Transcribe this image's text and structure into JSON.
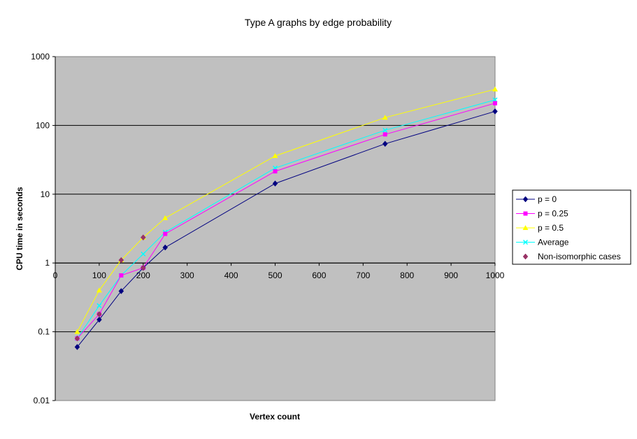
{
  "chart_data": {
    "type": "line",
    "title": "Type A graphs by edge probability",
    "xlabel": "Vertex count",
    "ylabel": "CPU time in seconds",
    "xlim": [
      0,
      1000
    ],
    "ylim": [
      0.01,
      1000
    ],
    "y_scale": "log",
    "x_ticks": [
      "0",
      "100",
      "200",
      "300",
      "400",
      "500",
      "600",
      "700",
      "800",
      "900",
      "1000"
    ],
    "y_ticks": [
      "0.01",
      "0.1",
      "1",
      "10",
      "100",
      "1000"
    ],
    "x_tick_values": [
      0,
      100,
      200,
      300,
      400,
      500,
      600,
      700,
      800,
      900,
      1000
    ],
    "y_tick_values": [
      0.01,
      0.1,
      1,
      10,
      100,
      1000
    ],
    "grid": "horizontal major gridlines",
    "plot_background": "#c0c0c0",
    "legend_position": "right",
    "series": [
      {
        "name": "p = 0",
        "color": "#000080",
        "marker": "diamond",
        "line": true,
        "points": [
          [
            50,
            0.06
          ],
          [
            100,
            0.15
          ],
          [
            150,
            0.39
          ],
          [
            200,
            0.85
          ],
          [
            250,
            1.68
          ],
          [
            500,
            14.3
          ],
          [
            750,
            54
          ],
          [
            1000,
            160
          ]
        ]
      },
      {
        "name": "p = 0.25",
        "color": "#ff00ff",
        "marker": "square",
        "line": true,
        "points": [
          [
            50,
            0.08
          ],
          [
            100,
            0.18
          ],
          [
            150,
            0.66
          ],
          [
            200,
            0.85
          ],
          [
            250,
            2.65
          ],
          [
            500,
            21.5
          ],
          [
            750,
            74
          ],
          [
            1000,
            210
          ]
        ]
      },
      {
        "name": "p = 0.5",
        "color": "#ffff00",
        "marker": "triangle",
        "line": true,
        "points": [
          [
            50,
            0.1
          ],
          [
            100,
            0.4
          ],
          [
            150,
            1.1
          ],
          [
            200,
            2.35
          ],
          [
            250,
            4.5
          ],
          [
            500,
            36
          ],
          [
            750,
            130
          ],
          [
            1000,
            335
          ]
        ]
      },
      {
        "name": "Average",
        "color": "#00ffff",
        "marker": "x",
        "line": true,
        "points": [
          [
            50,
            0.08
          ],
          [
            100,
            0.24
          ],
          [
            150,
            0.66
          ],
          [
            200,
            1.35
          ],
          [
            250,
            2.8
          ],
          [
            500,
            24
          ],
          [
            750,
            85
          ],
          [
            1000,
            235
          ]
        ]
      },
      {
        "name": "Non-isomorphic cases",
        "color": "#993366",
        "marker": "diamond",
        "line": false,
        "points": [
          [
            50,
            0.08
          ],
          [
            100,
            0.18
          ],
          [
            150,
            1.1
          ],
          [
            200,
            2.35
          ],
          [
            200,
            0.85
          ]
        ]
      }
    ]
  }
}
